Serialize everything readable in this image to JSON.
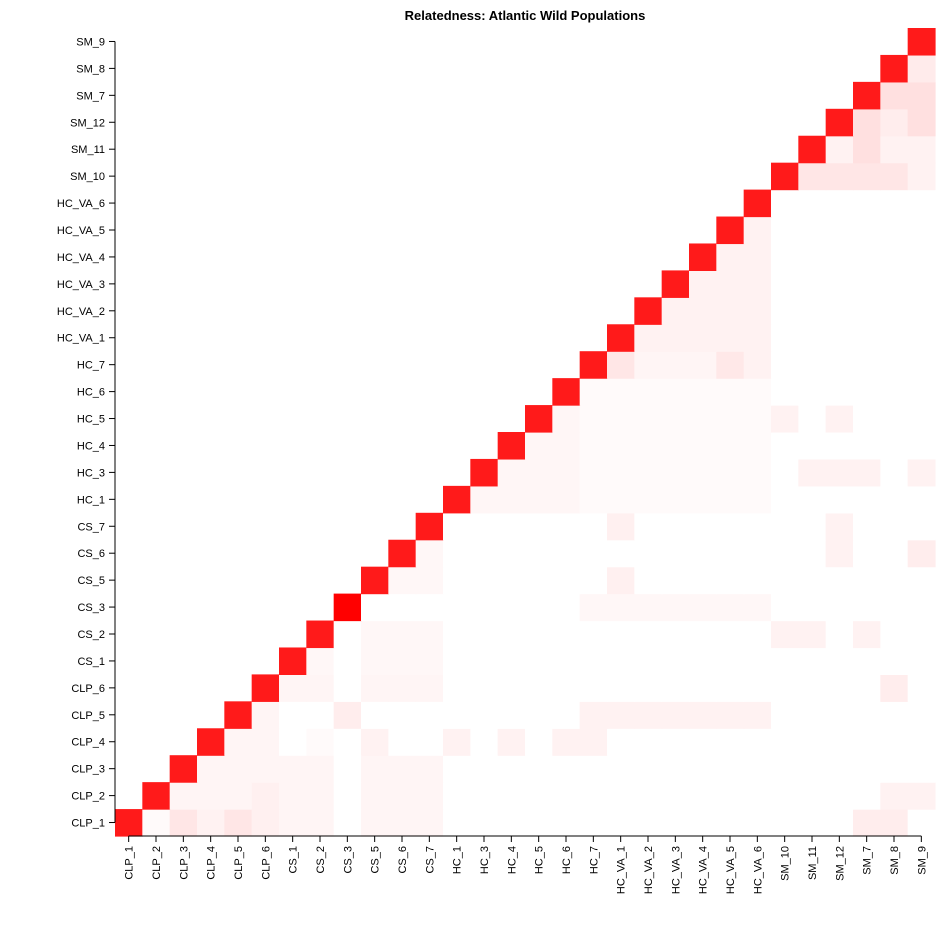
{
  "chart_data": {
    "type": "heatmap",
    "title": "Relatedness: Atlantic Wild Populations",
    "xlabel": "",
    "ylabel": "",
    "color_low": "#ffffff",
    "color_high": "#ff0000",
    "value_range": [
      0,
      1
    ],
    "labels": [
      "CLP_1",
      "CLP_2",
      "CLP_3",
      "CLP_4",
      "CLP_5",
      "CLP_6",
      "CS_1",
      "CS_2",
      "CS_3",
      "CS_5",
      "CS_6",
      "CS_7",
      "HC_1",
      "HC_3",
      "HC_4",
      "HC_5",
      "HC_6",
      "HC_7",
      "HC_VA_1",
      "HC_VA_2",
      "HC_VA_3",
      "HC_VA_4",
      "HC_VA_5",
      "HC_VA_6",
      "SM_10",
      "SM_11",
      "SM_12",
      "SM_7",
      "SM_8",
      "SM_9"
    ],
    "group_sizes": [
      6,
      6,
      5,
      7,
      6
    ],
    "background_values": [
      [
        0.04,
        0.04,
        0.0,
        0.0,
        0.0
      ],
      [
        0.04,
        0.03,
        0.0,
        0.0,
        0.0
      ],
      [
        0.0,
        0.0,
        0.035,
        0.02,
        0.0
      ],
      [
        0.0,
        0.0,
        0.02,
        0.05,
        0.0
      ],
      [
        0.0,
        0.0,
        0.0,
        0.0,
        0.06
      ]
    ],
    "cell_values": [
      [
        0,
        2,
        0.1
      ],
      [
        1,
        0,
        0.02
      ],
      [
        0,
        3,
        0.05
      ],
      [
        0,
        4,
        0.1
      ],
      [
        0,
        5,
        0.06
      ],
      [
        1,
        5,
        0.06
      ],
      [
        3,
        6,
        0.0
      ],
      [
        4,
        6,
        0.0
      ],
      [
        3,
        7,
        0.02
      ],
      [
        4,
        7,
        0.0
      ],
      [
        3,
        8,
        0.0
      ],
      [
        4,
        8,
        0.07
      ],
      [
        5,
        8,
        0.0
      ],
      [
        6,
        8,
        0.0
      ],
      [
        7,
        8,
        0.0
      ],
      [
        0,
        8,
        0.0
      ],
      [
        1,
        8,
        0.0
      ],
      [
        2,
        8,
        0.0
      ],
      [
        8,
        9,
        0.0
      ],
      [
        8,
        10,
        0.0
      ],
      [
        8,
        11,
        0.0
      ],
      [
        8,
        12,
        0.0
      ],
      [
        8,
        13,
        0.0
      ],
      [
        8,
        14,
        0.0
      ],
      [
        8,
        15,
        0.0
      ],
      [
        8,
        16,
        0.0
      ],
      [
        3,
        9,
        0.05
      ],
      [
        3,
        12,
        0.05
      ],
      [
        3,
        14,
        0.05
      ],
      [
        3,
        16,
        0.05
      ],
      [
        3,
        10,
        0.0
      ],
      [
        3,
        11,
        0.0
      ],
      [
        3,
        13,
        0.0
      ],
      [
        3,
        15,
        0.0
      ],
      [
        4,
        9,
        0.0
      ],
      [
        4,
        10,
        0.0
      ],
      [
        4,
        11,
        0.0
      ],
      [
        4,
        12,
        0.0
      ],
      [
        4,
        13,
        0.0
      ],
      [
        4,
        14,
        0.0
      ],
      [
        4,
        15,
        0.0
      ],
      [
        4,
        16,
        0.0
      ],
      [
        3,
        17,
        0.05
      ],
      [
        4,
        17,
        0.05
      ],
      [
        4,
        18,
        0.05
      ],
      [
        4,
        19,
        0.05
      ],
      [
        4,
        20,
        0.05
      ],
      [
        4,
        21,
        0.05
      ],
      [
        4,
        22,
        0.05
      ],
      [
        4,
        23,
        0.05
      ],
      [
        8,
        17,
        0.03
      ],
      [
        8,
        18,
        0.03
      ],
      [
        8,
        19,
        0.03
      ],
      [
        8,
        20,
        0.03
      ],
      [
        8,
        21,
        0.03
      ],
      [
        8,
        22,
        0.03
      ],
      [
        8,
        23,
        0.03
      ],
      [
        9,
        18,
        0.06
      ],
      [
        11,
        18,
        0.06
      ],
      [
        17,
        18,
        0.1
      ],
      [
        17,
        19,
        0.04
      ],
      [
        17,
        20,
        0.04
      ],
      [
        17,
        21,
        0.04
      ],
      [
        17,
        22,
        0.09
      ],
      [
        17,
        23,
        0.05
      ],
      [
        7,
        24,
        0.05
      ],
      [
        7,
        25,
        0.05
      ],
      [
        7,
        27,
        0.05
      ],
      [
        15,
        24,
        0.05
      ],
      [
        15,
        26,
        0.05
      ],
      [
        13,
        25,
        0.05
      ],
      [
        13,
        26,
        0.05
      ],
      [
        13,
        27,
        0.05
      ],
      [
        13,
        29,
        0.05
      ],
      [
        11,
        26,
        0.05
      ],
      [
        10,
        26,
        0.05
      ],
      [
        10,
        29,
        0.07
      ],
      [
        5,
        28,
        0.07
      ],
      [
        1,
        28,
        0.05
      ],
      [
        1,
        29,
        0.05
      ],
      [
        0,
        27,
        0.07
      ],
      [
        0,
        28,
        0.07
      ],
      [
        24,
        25,
        0.1
      ],
      [
        24,
        26,
        0.1
      ],
      [
        24,
        27,
        0.1
      ],
      [
        24,
        28,
        0.1
      ],
      [
        24,
        29,
        0.05
      ],
      [
        25,
        26,
        0.05
      ],
      [
        25,
        27,
        0.12
      ],
      [
        25,
        28,
        0.05
      ],
      [
        25,
        29,
        0.05
      ],
      [
        26,
        27,
        0.12
      ],
      [
        26,
        28,
        0.07
      ],
      [
        26,
        29,
        0.12
      ],
      [
        27,
        28,
        0.12
      ],
      [
        27,
        29,
        0.12
      ],
      [
        28,
        29,
        0.08
      ]
    ],
    "diagonal_values": [
      0.9,
      0.9,
      0.9,
      0.9,
      0.9,
      0.9,
      0.9,
      0.9,
      1.0,
      0.9,
      0.9,
      0.9,
      0.9,
      0.9,
      0.9,
      0.9,
      0.9,
      0.9,
      0.9,
      0.9,
      0.9,
      0.9,
      0.9,
      0.9,
      0.9,
      0.9,
      0.9,
      0.9,
      0.9,
      0.9
    ],
    "grid": false,
    "legend": "none"
  }
}
